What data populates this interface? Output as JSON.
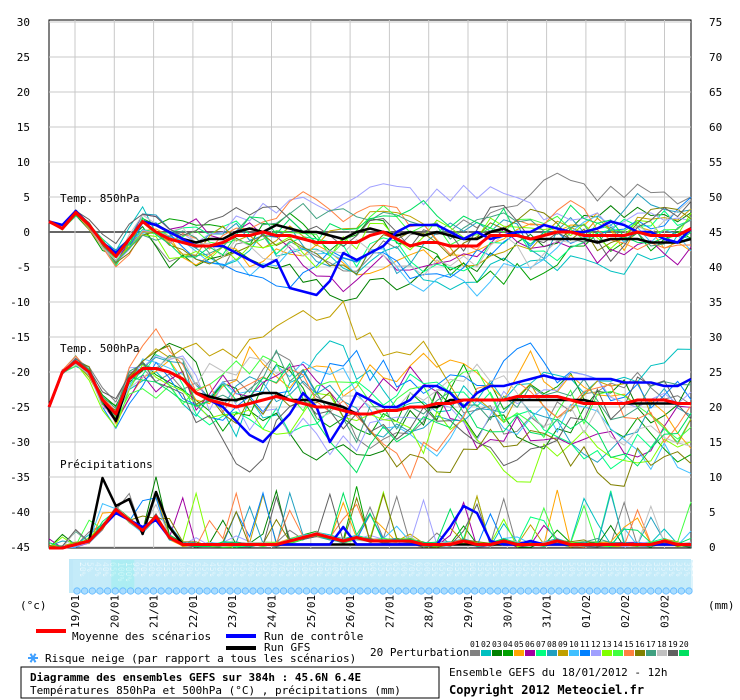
{
  "chart_data": {
    "type": "line",
    "title": "Diagramme des ensembles GEFS sur 384h : 45.6N 6.4E",
    "subtitle": "Températures 850hPa et 500hPa (°C) , précipitations (mm)",
    "left_axis": {
      "unit_label": "(°c)",
      "ticks": [
        30,
        25,
        20,
        15,
        10,
        5,
        0,
        -5,
        -10,
        -15,
        -20,
        -25,
        -30,
        -35,
        -40,
        -45
      ],
      "range": [
        -45,
        30
      ]
    },
    "right_axis": {
      "unit_label": "(mm)",
      "ticks": [
        75,
        70,
        65,
        60,
        55,
        50,
        45,
        40,
        35,
        30,
        25,
        20,
        15,
        10,
        5,
        0
      ]
    },
    "x_dates": [
      "19/01",
      "20/01",
      "21/01",
      "22/01",
      "23/01",
      "24/01",
      "25/01",
      "26/01",
      "27/01",
      "28/01",
      "29/01",
      "30/01",
      "31/01",
      "01/02",
      "02/02",
      "03/02"
    ],
    "panel_labels": [
      "Temp. 850hPa",
      "Temp. 500hPa",
      "Précipitations"
    ],
    "snow_risk_label": "Risque neige (par rapport a tous les scénarios)",
    "snow_risk": [
      "20%",
      "5%",
      "45%",
      "40%",
      "65%",
      "100%",
      "100%",
      "95%",
      "70%",
      "60%",
      "50%",
      "55%",
      "65%",
      "80%",
      "70%",
      "65%",
      "45%",
      "45%",
      "50%",
      "45%",
      "45%",
      "45%",
      "60%",
      "45%",
      "55%",
      "40%",
      "70%",
      "45%",
      "65%",
      "50%",
      "45%",
      "50%",
      "45%",
      "40%",
      "45%",
      "45%",
      "45%",
      "45%",
      "60%",
      "55%",
      "45%",
      "65%",
      "60%",
      "70%",
      "65%",
      "60%",
      "65%",
      "65%",
      "70%",
      "65%",
      "55%",
      "60%",
      "55%",
      "45%",
      "55%",
      "40%",
      "60%",
      "50%",
      "45%",
      "55%",
      "45%",
      "35%",
      "35%",
      "35%",
      "50%",
      "55%",
      "35%",
      "35%",
      "45%",
      "35%",
      "35%",
      "40%",
      "35%",
      "35%",
      "45%",
      "35%",
      "35%",
      "35%",
      "35%",
      "35%",
      "35%"
    ],
    "legend": {
      "mean": "Moyenne des scénarios",
      "control": "Run de contrôle",
      "gfs": "Run GFS",
      "perturbations": "20 Perturbations",
      "perturbation_ids": [
        "01",
        "02",
        "03",
        "04",
        "05",
        "06",
        "07",
        "08",
        "09",
        "10",
        "11",
        "12",
        "13",
        "14",
        "15",
        "16",
        "17",
        "18",
        "19",
        "20"
      ]
    },
    "colors": {
      "mean": "#ff0000",
      "control": "#0000ff",
      "gfs": "#000000",
      "perturbations": [
        "#808080",
        "#00c0c0",
        "#008000",
        "#00a000",
        "#ffa500",
        "#a000a0",
        "#00ff80",
        "#20a0c0",
        "#c0a000",
        "#40c0ff",
        "#0080ff",
        "#a0a0ff",
        "#80ff00",
        "#40ff40",
        "#ff8040",
        "#808000",
        "#40a080",
        "#c0c0c0",
        "#606060",
        "#00e060"
      ]
    },
    "series": [
      {
        "name": "Moyenne des scénarios",
        "t850": [
          1.5,
          0.5,
          2.8,
          1.0,
          -1.5,
          -3.5,
          -1.0,
          1.5,
          0.0,
          -1.0,
          -1.5,
          -2.0,
          -2.0,
          -1.5,
          -0.5,
          -0.5,
          0.0,
          -0.5,
          -0.5,
          -1.0,
          -1.5,
          -1.5,
          -1.5,
          -1.5,
          -0.5,
          0.0,
          -1.0,
          -2.0,
          -1.5,
          -1.5,
          -2.0,
          -2.0,
          -2.0,
          -0.5,
          -0.5,
          -0.5,
          -1.0,
          -0.5,
          0.0,
          0.0,
          -0.5,
          -0.5,
          -0.5,
          -0.5,
          0.0,
          -0.5,
          -0.5,
          -0.5,
          0.5
        ],
        "t500": [
          -25,
          -20,
          -18.5,
          -20,
          -24,
          -26,
          -21,
          -19.5,
          -19.5,
          -20,
          -21,
          -23,
          -24,
          -24.5,
          -25,
          -24.5,
          -24,
          -23.5,
          -24,
          -24.5,
          -25,
          -25,
          -25.5,
          -26,
          -26,
          -25.5,
          -25.5,
          -25,
          -25,
          -24.5,
          -24.5,
          -24,
          -24,
          -24,
          -24,
          -23.5,
          -23.5,
          -23.5,
          -23.5,
          -24,
          -24.5,
          -24.5,
          -24.5,
          -24.5,
          -24,
          -24,
          -24,
          -24.5,
          -24.5
        ],
        "precip": [
          0,
          0,
          0.5,
          1.0,
          3.0,
          5.5,
          4.0,
          2.5,
          4.5,
          1.5,
          0.5,
          0.5,
          0.5,
          0.5,
          0.5,
          0.5,
          0.5,
          0.5,
          1.0,
          1.5,
          2.0,
          1.5,
          1.0,
          1.5,
          1.0,
          1.0,
          1.0,
          1.0,
          0.5,
          0.5,
          0.5,
          1.0,
          0.5,
          0.5,
          1.0,
          0.5,
          0.5,
          0.5,
          1.0,
          0.5,
          0.5,
          0.5,
          0.5,
          0.5,
          0.5,
          0.5,
          1.0,
          0.5,
          0.5
        ]
      },
      {
        "name": "Run de contrôle",
        "t850": [
          1.5,
          1.0,
          3.0,
          1.0,
          -1.5,
          -3.0,
          -1.0,
          1.5,
          1.0,
          0.0,
          -1.0,
          -2.0,
          -2.0,
          -2.0,
          -3.0,
          -4.0,
          -5.0,
          -4.0,
          -8.0,
          -8.5,
          -9.0,
          -7.0,
          -3.0,
          -4.0,
          -3.0,
          -2.0,
          0.0,
          1.0,
          1.0,
          1.0,
          0.0,
          -1.0,
          0.0,
          -1.0,
          -0.5,
          0.0,
          0.0,
          1.0,
          0.5,
          0.0,
          0.0,
          0.5,
          1.5,
          1.0,
          0.0,
          0.0,
          -1.0,
          -1.5,
          0.5
        ],
        "t500": [
          -25,
          -20,
          -18.5,
          -20,
          -24,
          -26,
          -21,
          -19.5,
          -19.5,
          -20,
          -21,
          -23,
          -24,
          -25,
          -27,
          -29,
          -30,
          -28,
          -26,
          -23,
          -25,
          -30,
          -27,
          -23,
          -24,
          -25,
          -25,
          -24,
          -22,
          -22,
          -23,
          -25,
          -23,
          -22,
          -22,
          -21.5,
          -21,
          -20.5,
          -21,
          -21,
          -21,
          -21,
          -21,
          -21.5,
          -21.5,
          -21.5,
          -22,
          -22,
          -21
        ],
        "precip": [
          0,
          0,
          0.5,
          1.0,
          3.0,
          5.0,
          4.0,
          3.0,
          4.0,
          1.5,
          0.5,
          0.5,
          0.5,
          0.5,
          0.5,
          0.5,
          0.5,
          0.5,
          0.5,
          0.5,
          0.5,
          0.5,
          3.0,
          0.5,
          0.5,
          0.5,
          0.5,
          0.5,
          0.5,
          0.5,
          3.0,
          6.0,
          5.0,
          1.0,
          0.5,
          0.5,
          1.0,
          0.5,
          0.5,
          0.5,
          0.5,
          0.5,
          0.5,
          0.5,
          0.5,
          0.5,
          0.5,
          0.5,
          0.5
        ]
      },
      {
        "name": "Run GFS",
        "t850": [
          1.5,
          0.5,
          3.0,
          1.0,
          -1.5,
          -3.5,
          -1.0,
          1.5,
          1.0,
          0.0,
          -1.0,
          -1.5,
          -1.0,
          -1.0,
          0.0,
          0.5,
          0.0,
          1.0,
          0.5,
          0.0,
          0.0,
          -0.5,
          -1.0,
          0.0,
          0.5,
          0.0,
          -0.5,
          0.0,
          -0.5,
          0.0,
          -0.5,
          -1.0,
          -1.0,
          0.0,
          0.5,
          -0.5,
          -1.0,
          -1.0,
          -1.0,
          -1.0,
          -1.0,
          -1.5,
          -1.0,
          -1.0,
          -1.0,
          -1.5,
          -1.5,
          -1.5,
          -1.0
        ],
        "t500": [
          -25,
          -20,
          -18.5,
          -20,
          -24,
          -27,
          -21,
          -19.5,
          -19.5,
          -20,
          -21,
          -23,
          -23.5,
          -24,
          -24,
          -23.5,
          -23,
          -23,
          -24,
          -24,
          -24,
          -24.5,
          -25,
          -26,
          -26,
          -25.5,
          -25.5,
          -25,
          -25,
          -25,
          -24,
          -24,
          -24,
          -24,
          -24,
          -24,
          -24,
          -24,
          -24,
          -24,
          -24,
          -24.5,
          -24.5,
          -24.5,
          -24.5,
          -24.5,
          -24.5,
          -24.5,
          -24.5
        ],
        "precip": [
          0,
          0,
          0.5,
          1.0,
          10.0,
          6.0,
          7.0,
          2.0,
          8.0,
          3.0,
          0.5,
          0.5,
          0.5,
          0.5,
          0.5,
          0.5,
          0.5,
          0.5,
          0.5,
          0.5,
          0.5,
          0.5,
          0.5,
          0.5,
          0.5,
          0.5,
          0.5,
          0.5,
          0.5,
          0.5,
          0.5,
          0.5,
          0.5,
          0.5,
          0.5,
          0.5,
          0.5,
          0.5,
          0.5,
          0.5,
          0.5,
          0.5,
          0.5,
          0.5,
          0.5,
          0.5,
          0.5,
          0.5,
          0.5
        ]
      }
    ],
    "info_run": "Ensemble GEFS du 18/01/2012 - 12h",
    "copyright": "Copyright 2012 Meteociel.fr"
  }
}
